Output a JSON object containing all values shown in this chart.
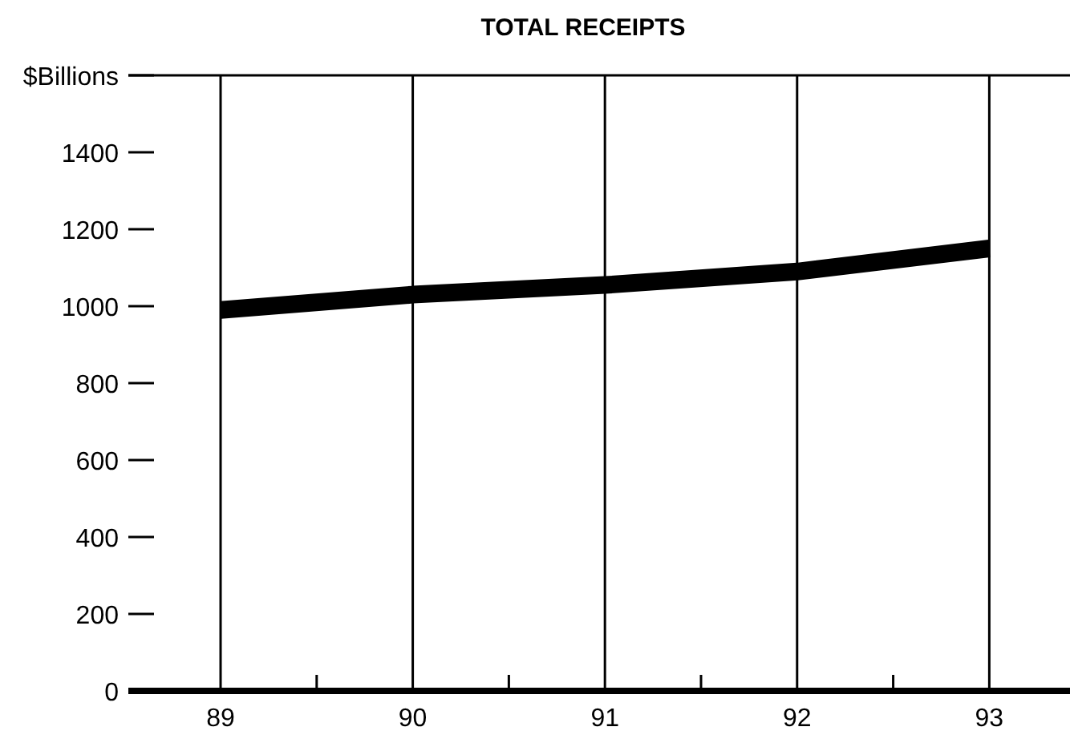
{
  "chart_data": {
    "type": "line",
    "title": "TOTAL RECEIPTS",
    "x": [
      89,
      90,
      91,
      92,
      93
    ],
    "series": [
      {
        "color": "#000000",
        "values": [
          990,
          1030,
          1055,
          1090,
          1150
        ]
      }
    ],
    "xlim": [
      88.52,
      93.42
    ],
    "xticks": [
      89,
      {
        "value": 89.5,
        "label": null
      },
      90,
      {
        "value": 90.5,
        "label": null
      },
      91,
      {
        "value": 91.5,
        "label": null
      },
      92,
      {
        "value": 92.5,
        "label": null
      },
      93
    ],
    "ylim": [
      0,
      1600
    ],
    "yticks": [
      0,
      200,
      400,
      600,
      800,
      1000,
      1200,
      1400,
      {
        "value": 1600,
        "label": "$Billions"
      }
    ],
    "grid": "x",
    "line_style": "solid"
  }
}
